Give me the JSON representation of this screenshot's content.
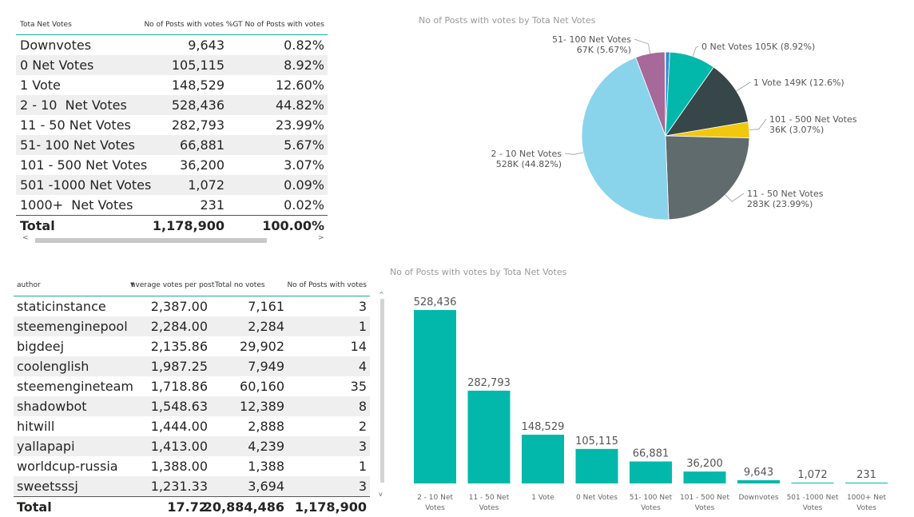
{
  "table1": {
    "headers": [
      "Tota Net Votes",
      "No of Posts with votes",
      "%GT No of Posts with votes"
    ],
    "rows": [
      [
        "Downvotes",
        "9,643",
        "0.82%"
      ],
      [
        "0 Net Votes",
        "105,115",
        "8.92%"
      ],
      [
        "1 Vote",
        "148,529",
        "12.60%"
      ],
      [
        "2 - 10  Net Votes",
        "528,436",
        "44.82%"
      ],
      [
        "11 - 50 Net Votes",
        "282,793",
        "23.99%"
      ],
      [
        "51- 100 Net Votes",
        "66,881",
        "5.67%"
      ],
      [
        "101 - 500 Net Votes",
        "36,200",
        "3.07%"
      ],
      [
        "501 -1000 Net Votes",
        "1,072",
        "0.09%"
      ],
      [
        "1000+  Net Votes",
        "231",
        "0.02%"
      ]
    ],
    "total": [
      "Total",
      "1,178,900",
      "100.00%"
    ],
    "scroll_left": "<",
    "scroll_right": ">"
  },
  "table2": {
    "headers": [
      "author",
      "average votes per post",
      "Total no votes",
      "No of Posts with votes"
    ],
    "sort_icon": "▼",
    "rows": [
      [
        "staticinstance",
        "2,387.00",
        "7,161",
        "3"
      ],
      [
        "steemenginepool",
        "2,284.00",
        "2,284",
        "1"
      ],
      [
        "bigdeej",
        "2,135.86",
        "29,902",
        "14"
      ],
      [
        "coolenglish",
        "1,987.25",
        "7,949",
        "4"
      ],
      [
        "steemengineteam",
        "1,718.86",
        "60,160",
        "35"
      ],
      [
        "shadowbot",
        "1,548.63",
        "12,389",
        "8"
      ],
      [
        "hitwill",
        "1,444.00",
        "2,888",
        "2"
      ],
      [
        "yallapapi",
        "1,413.00",
        "4,239",
        "3"
      ],
      [
        "worldcup-russia",
        "1,388.00",
        "1,388",
        "1"
      ],
      [
        "sweetsssj",
        "1,231.33",
        "3,694",
        "3"
      ]
    ],
    "total": [
      "Total",
      "17.72",
      "20,884,486",
      "1,178,900"
    ],
    "scroll_up": "^",
    "scroll_down": "v"
  },
  "pie": {
    "title": "No of Posts with votes by Tota Net Votes"
  },
  "bar": {
    "title": "No of Posts with votes by Tota Net Votes"
  },
  "chart_data": [
    {
      "type": "pie",
      "title": "No of Posts with votes by Tota Net Votes",
      "slices": [
        {
          "name": "Downvotes",
          "value": 9643,
          "color": "#2d8fd5",
          "label": ""
        },
        {
          "name": "0 Net Votes",
          "value": 105115,
          "color": "#01b8aa",
          "label": "0 Net Votes 105K (8.92%)"
        },
        {
          "name": "1 Vote",
          "value": 148529,
          "color": "#374649",
          "label": "1 Vote 149K (12.6%)"
        },
        {
          "name": "101 - 500 Net Votes",
          "value": 36200,
          "color": "#f2c80f",
          "label": "101 - 500 Net Votes|36K (3.07%)"
        },
        {
          "name": "11 - 50 Net Votes",
          "value": 282793,
          "color": "#5f6b6d",
          "label": "11 - 50 Net Votes|283K (23.99%)"
        },
        {
          "name": "2 - 10 Net Votes",
          "value": 528436,
          "color": "#8ad4eb",
          "label": "2 - 10 Net Votes|528K (44.82%)"
        },
        {
          "name": "51- 100 Net Votes",
          "value": 66881,
          "color": "#a66999",
          "label": "51- 100 Net Votes|67K (5.67%)"
        },
        {
          "name": "501 -1000 Net Votes",
          "value": 1072,
          "color": "#fe9666",
          "label": ""
        },
        {
          "name": "1000+ Net Votes",
          "value": 231,
          "color": "#fd625e",
          "label": ""
        }
      ]
    },
    {
      "type": "bar",
      "title": "No of Posts with votes by Tota Net Votes",
      "categories": [
        "2 - 10 Net|Votes",
        "11 - 50 Net|Votes",
        "1 Vote",
        "0 Net Votes",
        "51- 100 Net|Votes",
        "101 - 500 Net|Votes",
        "Downvotes",
        "501 -1000 Net|Votes",
        "1000+ Net|Votes"
      ],
      "values": [
        528436,
        282793,
        148529,
        105115,
        66881,
        36200,
        9643,
        1072,
        231
      ],
      "data_labels": [
        "528,436",
        "282,793",
        "148,529",
        "105,115",
        "66,881",
        "36,200",
        "9,643",
        "1,072",
        "231"
      ],
      "color": "#01b8aa",
      "ylim": [
        0,
        528436
      ]
    }
  ]
}
